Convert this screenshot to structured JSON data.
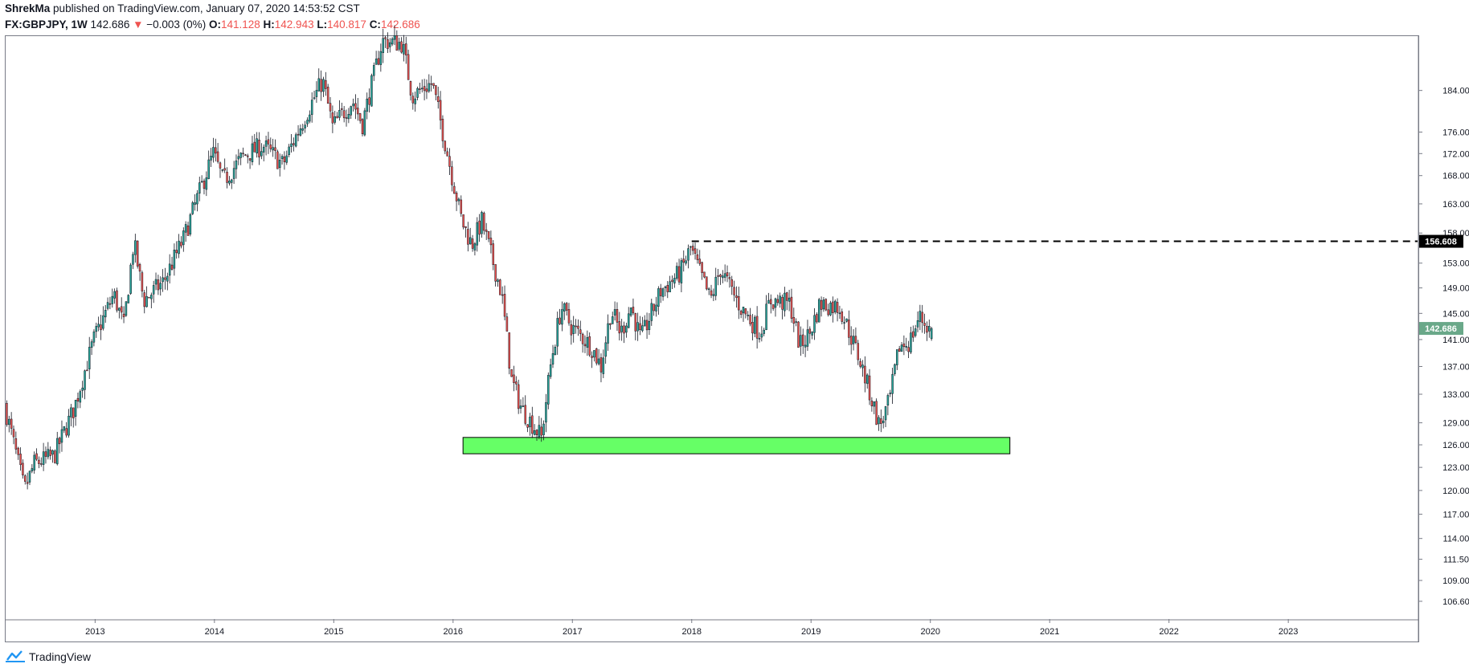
{
  "header": {
    "author": "ShrekMa",
    "published_text": "published on TradingView.com, January 07, 2020 14:53:52 CST",
    "symbol": "FX:GBPJPY, 1W",
    "last": "142.686",
    "change": "−0.003 (0%)",
    "open_label": "O:",
    "open": "141.128",
    "high_label": "H:",
    "high": "142.943",
    "low_label": "L:",
    "low": "140.817",
    "close_label": "C:",
    "close": "142.686"
  },
  "footer": {
    "brand": "TradingView",
    "brand_icon": "tradingview-cloud-icon"
  },
  "colors": {
    "up": "#26a69a",
    "down": "#ef5350",
    "zone_fill": "#66ff66",
    "price_tag_bg": "#6aa889",
    "level_tag_bg": "#000000",
    "grid": "#787b86"
  },
  "chart_data": {
    "type": "candlestick",
    "title": "FX:GBPJPY, 1W",
    "x_axis": {
      "ticks": [
        "2013",
        "2014",
        "2015",
        "2016",
        "2017",
        "2018",
        "2019",
        "2020",
        "2021",
        "2022",
        "2023"
      ],
      "range": [
        "2012-04",
        "2024-02"
      ]
    },
    "y_axis": {
      "scale": "log",
      "ticks": [
        "184.000",
        "176.000",
        "172.000",
        "168.000",
        "163.000",
        "158.000",
        "153.000",
        "149.000",
        "145.000",
        "141.000",
        "137.000",
        "133.000",
        "129.000",
        "126.000",
        "123.000",
        "120.000",
        "117.000",
        "114.000",
        "111.500",
        "109.000",
        "106.600"
      ],
      "range": [
        104.6,
        195.0
      ]
    },
    "last_price_tag": "142.686",
    "horizontal_level": {
      "value": "156.608",
      "start_date": "2018-01",
      "style": "dashed"
    },
    "support_zone": {
      "low": 124.8,
      "high": 127.0,
      "start": "2016-02",
      "end": "2020-09"
    },
    "price_path": [
      [
        "2012-04",
        131.5
      ],
      [
        "2012-06",
        120.0
      ],
      [
        "2012-07",
        123.5
      ],
      [
        "2012-09",
        124.5
      ],
      [
        "2012-11",
        131.0
      ],
      [
        "2013-01",
        141.0
      ],
      [
        "2013-03",
        148.0
      ],
      [
        "2013-04",
        143.0
      ],
      [
        "2013-05",
        156.5
      ],
      [
        "2013-06",
        147.0
      ],
      [
        "2013-08",
        150.0
      ],
      [
        "2013-10",
        157.0
      ],
      [
        "2014-01",
        172.0
      ],
      [
        "2014-02",
        167.0
      ],
      [
        "2014-04",
        171.5
      ],
      [
        "2014-06",
        173.5
      ],
      [
        "2014-08",
        170.0
      ],
      [
        "2014-10",
        178.0
      ],
      [
        "2014-12",
        186.0
      ],
      [
        "2015-01",
        177.0
      ],
      [
        "2015-03",
        182.0
      ],
      [
        "2015-04",
        177.5
      ],
      [
        "2015-06",
        194.0
      ],
      [
        "2015-08",
        193.5
      ],
      [
        "2015-09",
        183.0
      ],
      [
        "2015-11",
        185.5
      ],
      [
        "2016-01",
        168.0
      ],
      [
        "2016-02",
        160.0
      ],
      [
        "2016-03",
        156.0
      ],
      [
        "2016-04",
        160.0
      ],
      [
        "2016-06",
        148.0
      ],
      [
        "2016-07",
        135.0
      ],
      [
        "2016-08",
        131.0
      ],
      [
        "2016-10",
        127.0
      ],
      [
        "2016-11",
        138.0
      ],
      [
        "2016-12",
        146.0
      ],
      [
        "2017-01",
        143.0
      ],
      [
        "2017-03",
        140.0
      ],
      [
        "2017-04",
        137.0
      ],
      [
        "2017-05",
        145.5
      ],
      [
        "2017-06",
        142.0
      ],
      [
        "2017-07",
        146.0
      ],
      [
        "2017-08",
        141.0
      ],
      [
        "2017-10",
        148.5
      ],
      [
        "2017-12",
        151.5
      ],
      [
        "2018-01",
        155.5
      ],
      [
        "2018-03",
        147.0
      ],
      [
        "2018-04",
        152.0
      ],
      [
        "2018-06",
        146.0
      ],
      [
        "2018-08",
        142.0
      ],
      [
        "2018-09",
        147.0
      ],
      [
        "2018-11",
        146.5
      ],
      [
        "2018-12",
        140.0
      ],
      [
        "2019-01",
        142.0
      ],
      [
        "2019-02",
        146.5
      ],
      [
        "2019-04",
        146.0
      ],
      [
        "2019-05",
        142.0
      ],
      [
        "2019-06",
        138.0
      ],
      [
        "2019-08",
        128.5
      ],
      [
        "2019-09",
        132.0
      ],
      [
        "2019-10",
        140.0
      ],
      [
        "2019-11",
        140.5
      ],
      [
        "2019-12",
        144.5
      ],
      [
        "2020-01",
        142.686
      ]
    ]
  }
}
